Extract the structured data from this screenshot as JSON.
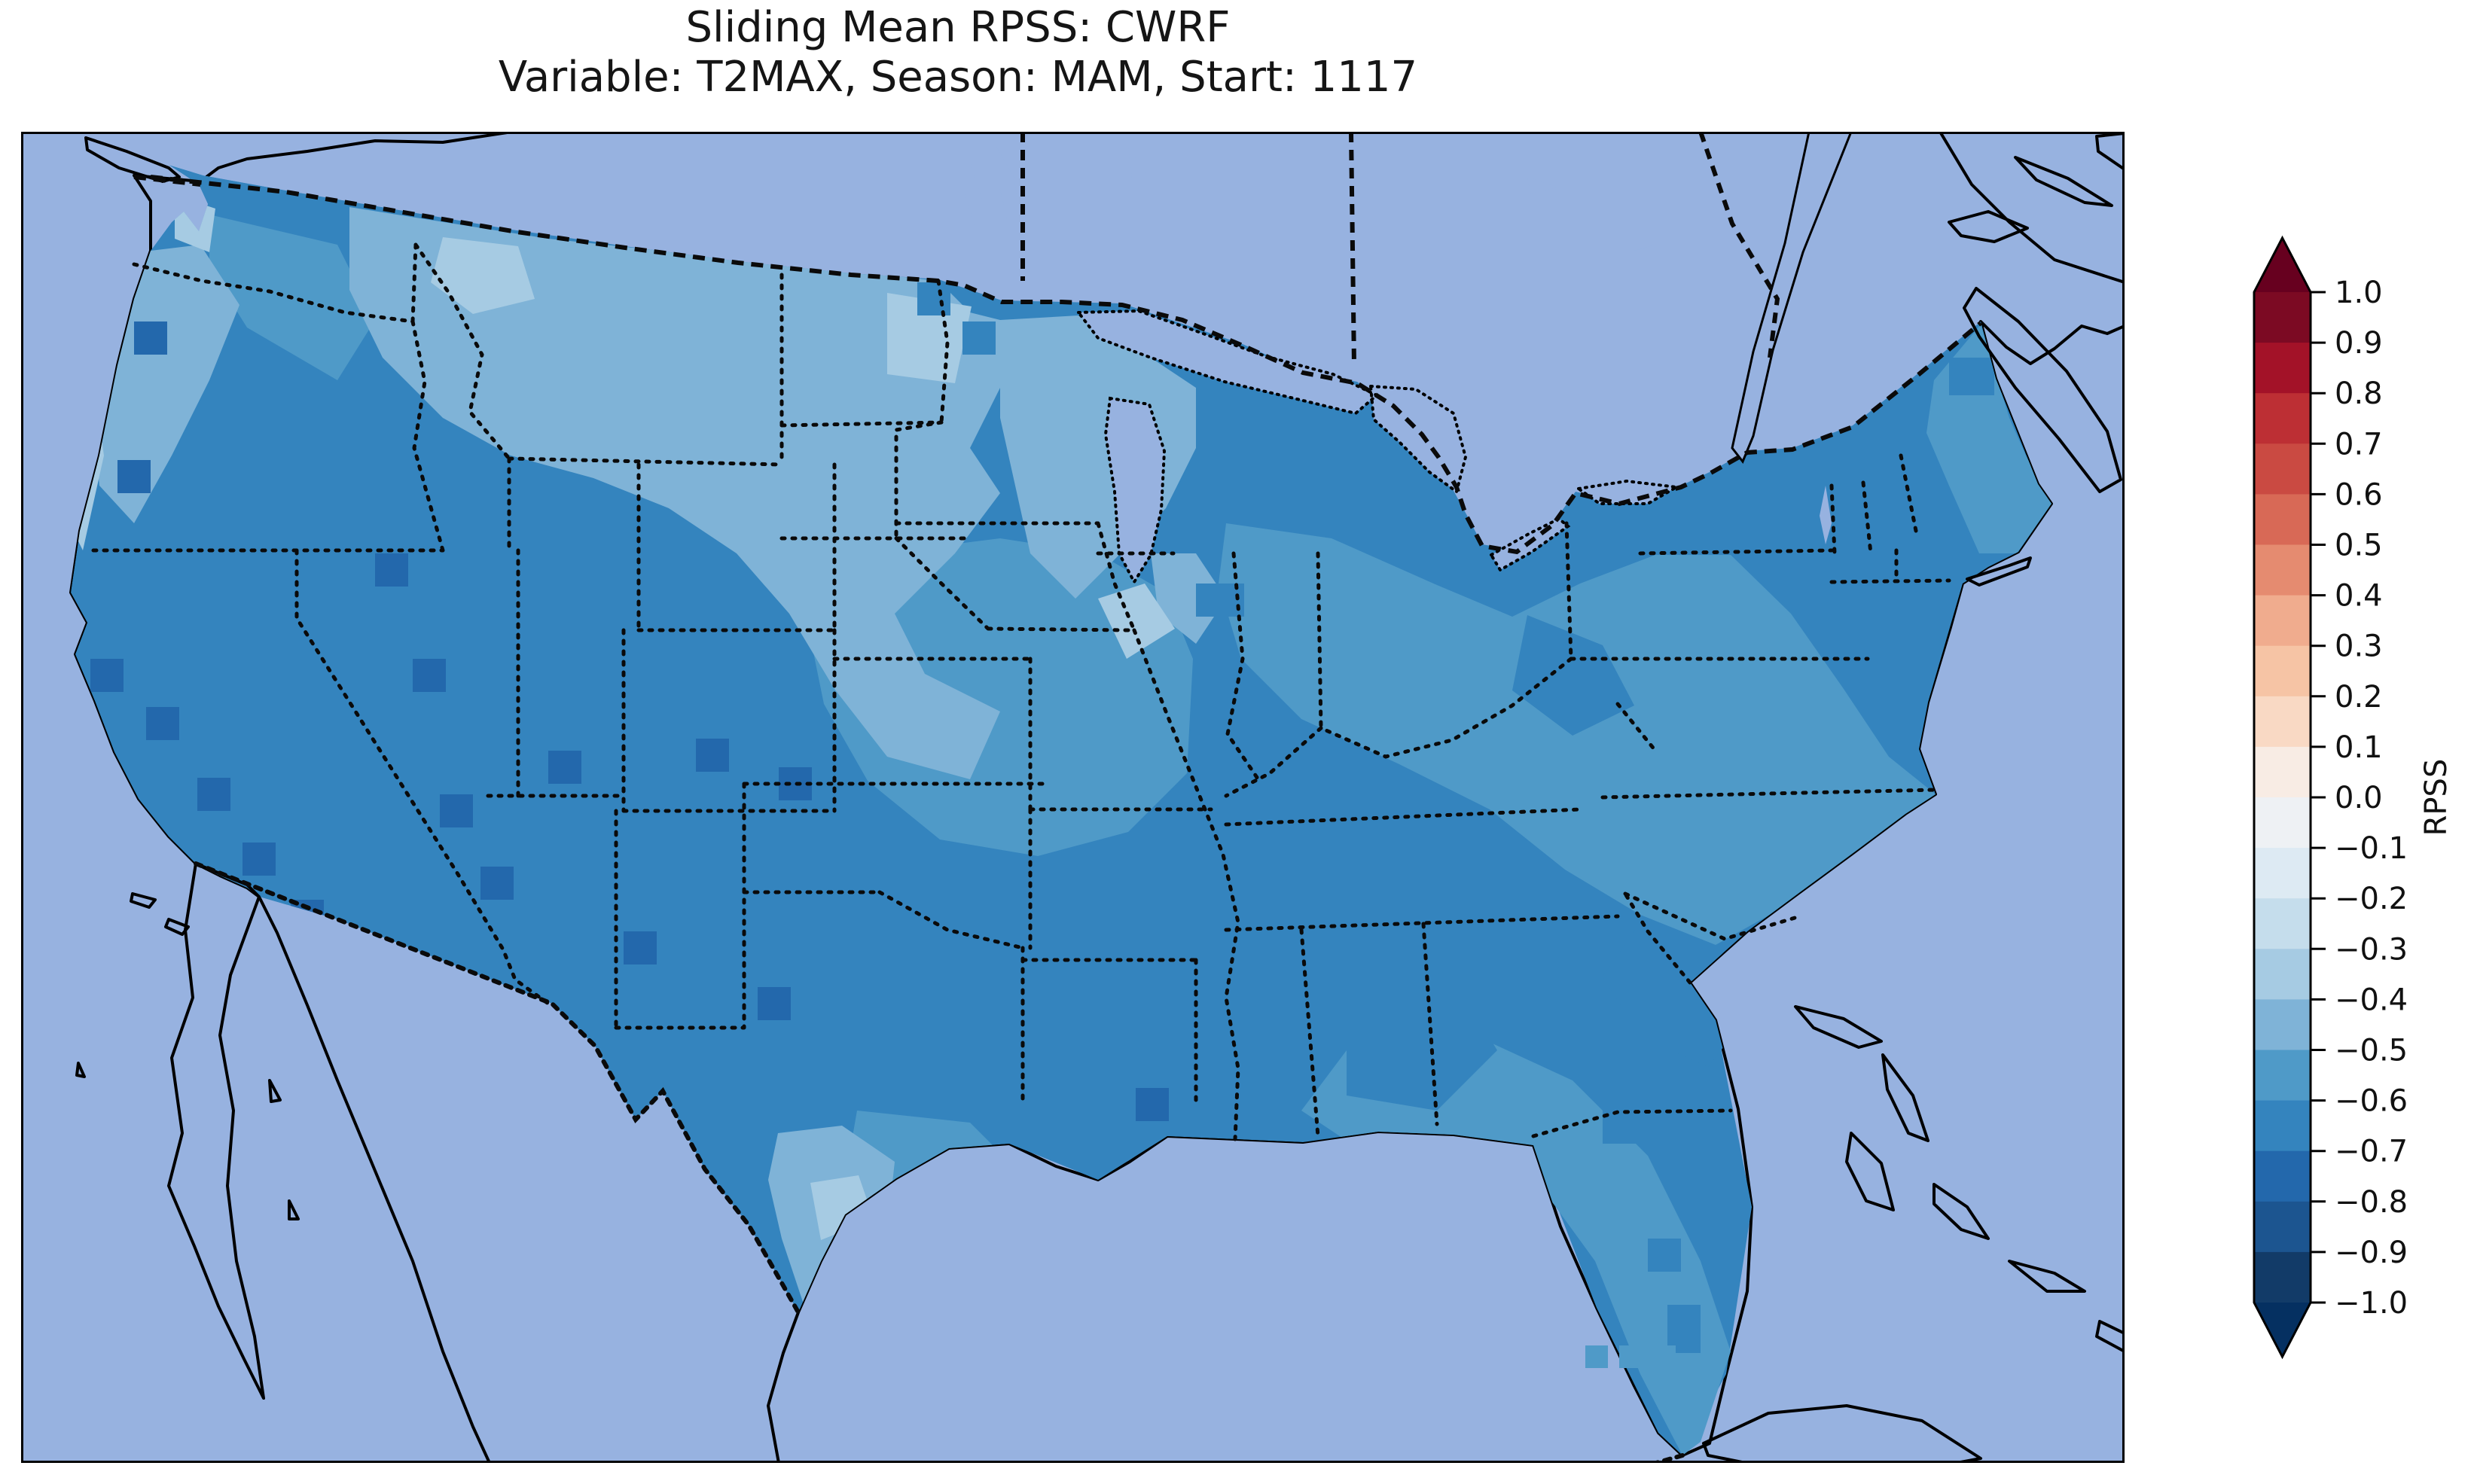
{
  "figure": {
    "title_line1": "Sliding Mean RPSS: CWRF",
    "title_line2": "Variable: T2MAX, Season: MAM, Start: 1117"
  },
  "colorbar": {
    "label": "RPSS",
    "ticks": [
      "1.0",
      "0.9",
      "0.8",
      "0.7",
      "0.6",
      "0.5",
      "0.4",
      "0.3",
      "0.2",
      "0.1",
      "0.0",
      "−0.1",
      "−0.2",
      "−0.3",
      "−0.4",
      "−0.5",
      "−0.6",
      "−0.7",
      "−0.8",
      "−0.9",
      "−1.0"
    ],
    "segment_colors": [
      "#7c0a23",
      "#a31228",
      "#bd2f34",
      "#ca4a42",
      "#d86956",
      "#e58b70",
      "#f0ac8e",
      "#f6c4a5",
      "#f9d9c4",
      "#f8ece4",
      "#eef1f4",
      "#ddeaf3",
      "#c5ddec",
      "#a6cbe3",
      "#7fb3d7",
      "#4f9ac8",
      "#3484be",
      "#2368ac",
      "#1c5590",
      "#123b68"
    ],
    "over_color": "#67001f",
    "under_color": "#053061"
  },
  "map": {
    "ocean_color": "#97b2e0",
    "land_color": "#f0eed9",
    "lake_color": "#97b2e0",
    "coast_color": "#000000"
  },
  "chart_data": {
    "type": "heatmap",
    "title": "Sliding Mean RPSS: CWRF",
    "subtitle": "Variable: T2MAX, Season: MAM, Start: 1117",
    "model": "CWRF",
    "metric": "RPSS",
    "variable": "T2MAX",
    "season": "MAM",
    "start": "1117",
    "colorbar_label": "RPSS",
    "colormap": "RdBu, discrete 0.1 bins with pointed over/under extensions",
    "value_range": [
      -1.0,
      1.0
    ],
    "tick_step": 0.1,
    "map_extent": "Continental United States with southern Canada, northern Mexico, Bahamas and Cuba visible",
    "summary": "Every CONUS grid cell is negative (blue shades only); values mostly between -0.4 and -0.7, darkest pockets near -0.8, lightest near -0.3.",
    "regions": [
      {
        "region": "Washington-Oregon outer coast",
        "rpss": -0.35
      },
      {
        "region": "Puget Sound cells",
        "rpss": -0.35
      },
      {
        "region": "Washington interior",
        "rpss": -0.55
      },
      {
        "region": "Oregon / Great Basin / California",
        "rpss": -0.65
      },
      {
        "region": "Scattered Sierra-Rockies cells",
        "rpss": -0.75
      },
      {
        "region": "Northern Montana pocket",
        "rpss": -0.35
      },
      {
        "region": "Northern Plains (MT/ND/SD/MN/WI)",
        "rpss": -0.45
      },
      {
        "region": "Dakotas-Minnesota lightest pockets",
        "rpss": -0.35
      },
      {
        "region": "Nebraska / Iowa / Kansas / Missouri belt",
        "rpss": -0.55
      },
      {
        "region": "Texas (most)",
        "rpss": -0.65
      },
      {
        "region": "South Texas",
        "rpss": -0.45
      },
      {
        "region": "Lower Rio Grande pocket",
        "rpss": -0.35
      },
      {
        "region": "Ohio Valley / Mid-South",
        "rpss": -0.55
      },
      {
        "region": "Southeast interior (GA/AL/SC)",
        "rpss": -0.65
      },
      {
        "region": "Atlantic coastal plain (VA/NC)",
        "rpss": -0.55
      },
      {
        "region": "Northeast (NY/PA/New England)",
        "rpss": -0.65
      },
      {
        "region": "Maine coastal/central",
        "rpss": -0.55
      },
      {
        "region": "Florida peninsula",
        "rpss": -0.55
      },
      {
        "region": "Florida scattered darker cells",
        "rpss": -0.65
      }
    ]
  }
}
